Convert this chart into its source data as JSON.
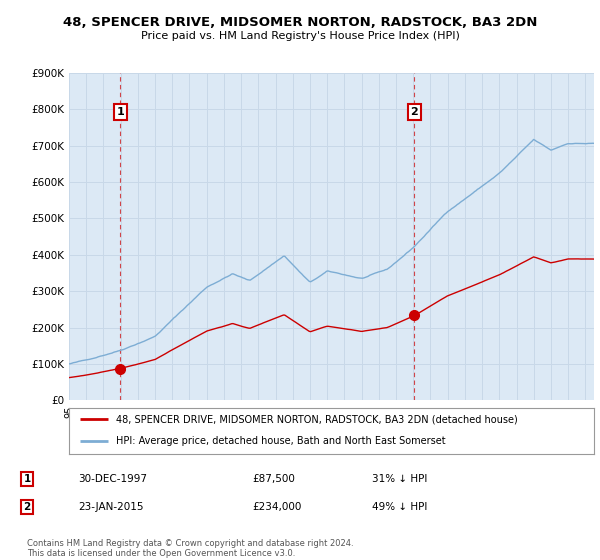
{
  "title": "48, SPENCER DRIVE, MIDSOMER NORTON, RADSTOCK, BA3 2DN",
  "subtitle": "Price paid vs. HM Land Registry's House Price Index (HPI)",
  "legend_line1": "48, SPENCER DRIVE, MIDSOMER NORTON, RADSTOCK, BA3 2DN (detached house)",
  "legend_line2": "HPI: Average price, detached house, Bath and North East Somerset",
  "sale1_date": "30-DEC-1997",
  "sale1_price": "£87,500",
  "sale1_note": "31% ↓ HPI",
  "sale2_date": "23-JAN-2015",
  "sale2_price": "£234,000",
  "sale2_note": "49% ↓ HPI",
  "footer": "Contains HM Land Registry data © Crown copyright and database right 2024.\nThis data is licensed under the Open Government Licence v3.0.",
  "line_color_red": "#cc0000",
  "line_color_blue": "#7dadd4",
  "fill_color_blue": "#dce9f5",
  "bg_color": "#ffffff",
  "grid_color": "#c8d8e8",
  "ylim": [
    0,
    900000
  ],
  "yticks": [
    0,
    100000,
    200000,
    300000,
    400000,
    500000,
    600000,
    700000,
    800000,
    900000
  ],
  "ytick_labels": [
    "£0",
    "£100K",
    "£200K",
    "£300K",
    "£400K",
    "£500K",
    "£600K",
    "£700K",
    "£800K",
    "£900K"
  ],
  "sale1_x": 1997.99,
  "sale1_y": 87500,
  "sale2_x": 2015.06,
  "sale2_y": 234000,
  "xlim_left": 1995.0,
  "xlim_right": 2025.5
}
